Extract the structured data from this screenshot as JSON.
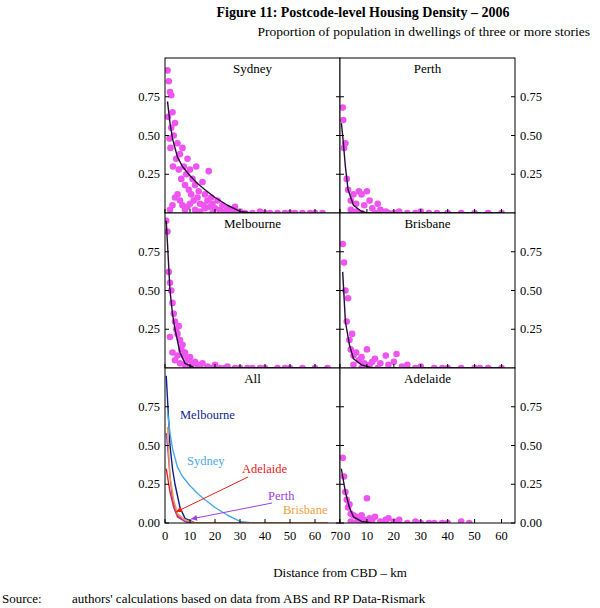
{
  "figure": {
    "title": "Figure 11: Postcode-level Housing Density – 2006",
    "subtitle": "Proportion of population in dwellings of three or more stories",
    "x_label": "Distance from CBD – km",
    "source_label": "Source:",
    "source": "authors' calculations based on data from ABS and RP Data-Rismark"
  },
  "chart_data": [
    {
      "type": "scatter",
      "title": "Sydney",
      "xlim": [
        0,
        70
      ],
      "xticks": [
        0,
        10,
        20,
        30,
        40,
        50,
        60,
        70
      ],
      "ylim": [
        0,
        1
      ],
      "yticks": [
        0.25,
        {
          "value": 0.5,
          "label": "0.50"
        },
        0.75
      ],
      "tick_labels": "y",
      "series": [
        {
          "type": "scatter",
          "color": "#ee55ee",
          "marker": "circle",
          "x": [
            1,
            1.5,
            2,
            2.5,
            1.2,
            2.5,
            3,
            1.8,
            2.2,
            3.5,
            4,
            4.5,
            3.2,
            5,
            5.5,
            6,
            6.5,
            7,
            7.5,
            8,
            8.5,
            9,
            9.5,
            10,
            10.5,
            11,
            11.5,
            12,
            12.5,
            13,
            13.5,
            14,
            15,
            15.5,
            16,
            17,
            17.5,
            18,
            18.5,
            19,
            20,
            21,
            22,
            23,
            24,
            25,
            26,
            27,
            28,
            30,
            32,
            35,
            38,
            40,
            45,
            50,
            55,
            60,
            2,
            3,
            4,
            5,
            6,
            7,
            8,
            9,
            10,
            12,
            14,
            16,
            19,
            22,
            25,
            28,
            42,
            48,
            52,
            58,
            63
          ],
          "values": [
            0.92,
            0.85,
            0.78,
            0.76,
            0.62,
            0.55,
            0.65,
            0.48,
            0.42,
            0.5,
            0.58,
            0.35,
            0.3,
            0.45,
            0.28,
            0.38,
            0.22,
            0.42,
            0.3,
            0.18,
            0.25,
            0.35,
            0.15,
            0.28,
            0.12,
            0.22,
            0.08,
            0.18,
            0.3,
            0.1,
            0.14,
            0.06,
            0.2,
            0.05,
            0.12,
            0.08,
            0.27,
            0.04,
            0.1,
            0.06,
            0.03,
            0.08,
            0.02,
            0.05,
            0.01,
            0.03,
            0.02,
            0.01,
            0.04,
            0.01,
            0,
            0,
            0.01,
            0,
            0,
            0,
            0,
            0,
            0.02,
            0.05,
            0.1,
            0.12,
            0.08,
            0.05,
            0.02,
            0.04,
            0.06,
            0.02,
            0.01,
            0.03,
            0,
            0,
            0,
            0,
            0,
            0,
            0,
            0,
            0
          ]
        },
        {
          "type": "line",
          "color": "#2a0a3a",
          "x": [
            1,
            2,
            3,
            5,
            7,
            10,
            13,
            16,
            20,
            25,
            30,
            35,
            40
          ],
          "values": [
            0.72,
            0.58,
            0.48,
            0.36,
            0.3,
            0.24,
            0.19,
            0.15,
            0.1,
            0.05,
            0.01,
            0,
            0
          ]
        }
      ]
    },
    {
      "type": "scatter",
      "title": "Perth",
      "xlim": [
        0,
        65
      ],
      "xticks": [
        0,
        10,
        20,
        30,
        40,
        50,
        60
      ],
      "ylim": [
        0,
        1
      ],
      "yticks": [
        0.25,
        {
          "value": 0.5,
          "label": "0.50"
        },
        0.75
      ],
      "tick_labels": "y",
      "series": [
        {
          "type": "scatter",
          "color": "#ee55ee",
          "marker": "circle",
          "x": [
            1,
            1.2,
            1.5,
            2,
            2.5,
            3,
            4,
            5,
            6,
            7,
            8,
            9,
            10,
            11,
            12,
            14,
            15,
            17,
            20,
            22,
            25,
            28,
            30,
            33,
            36,
            40,
            45,
            50,
            55,
            60,
            4,
            6,
            8,
            13,
            18
          ],
          "values": [
            0.68,
            0.6,
            0.42,
            0.45,
            0.22,
            0.15,
            0.08,
            0.12,
            0.06,
            0.14,
            0.12,
            0.05,
            0.14,
            0.08,
            0.03,
            0.06,
            0.02,
            0.01,
            0,
            0.01,
            0,
            0,
            0.01,
            0,
            0,
            0,
            0,
            0,
            0,
            0,
            0.02,
            0.01,
            0,
            0,
            0
          ]
        },
        {
          "type": "line",
          "color": "#2a0a3a",
          "x": [
            0.5,
            1,
            2,
            3,
            5,
            8,
            10,
            15,
            20,
            30,
            40,
            50,
            60
          ],
          "values": [
            0.58,
            0.5,
            0.3,
            0.15,
            0.05,
            0.01,
            0,
            0,
            0,
            0,
            0,
            0,
            0
          ]
        }
      ]
    },
    {
      "type": "scatter",
      "title": "Melbourne",
      "xlim": [
        0,
        70
      ],
      "xticks": [
        0,
        10,
        20,
        30,
        40,
        50,
        60,
        70
      ],
      "ylim": [
        0,
        1
      ],
      "yticks": [
        0.25,
        {
          "value": 0.5,
          "label": "0.50"
        },
        0.75
      ],
      "tick_labels": "y",
      "series": [
        {
          "type": "scatter",
          "color": "#ee55ee",
          "marker": "circle",
          "x": [
            0.5,
            1,
            1.5,
            2,
            2.5,
            3,
            3.5,
            4,
            4.5,
            5,
            5.5,
            6,
            6.5,
            7,
            7.5,
            8,
            9,
            10,
            11,
            12,
            13,
            15,
            17,
            20,
            22,
            25,
            28,
            30,
            35,
            40,
            45,
            50,
            55,
            60,
            65,
            3,
            4,
            5,
            6,
            8,
            10,
            14,
            18,
            24,
            33,
            38,
            48,
            2
          ],
          "values": [
            0.95,
            0.88,
            0.62,
            0.55,
            0.5,
            0.42,
            0.35,
            0.3,
            0.25,
            0.22,
            0.27,
            0.18,
            0.12,
            0.15,
            0.08,
            0.1,
            0.05,
            0.07,
            0.03,
            0.04,
            0.02,
            0.03,
            0.01,
            0.02,
            0,
            0.01,
            0,
            0,
            0,
            0,
            0,
            0,
            0,
            0,
            0,
            0.1,
            0.05,
            0.08,
            0.03,
            0.02,
            0,
            0,
            0,
            0,
            0,
            0,
            0,
            0.2
          ]
        },
        {
          "type": "line",
          "color": "#2a0a3a",
          "x": [
            0.5,
            1,
            2,
            3,
            4,
            6,
            8,
            12,
            20,
            30,
            40,
            50,
            60,
            65
          ],
          "values": [
            0.95,
            0.8,
            0.5,
            0.35,
            0.25,
            0.1,
            0.03,
            0,
            0,
            0,
            0,
            0,
            0,
            0
          ]
        }
      ]
    },
    {
      "type": "scatter",
      "title": "Brisbane",
      "xlim": [
        0,
        65
      ],
      "xticks": [
        0,
        10,
        20,
        30,
        40,
        50,
        60
      ],
      "ylim": [
        0,
        1
      ],
      "yticks": [
        0.25,
        {
          "value": 0.5,
          "label": "0.50"
        },
        0.75
      ],
      "tick_labels": "y",
      "series": [
        {
          "type": "scatter",
          "color": "#ee55ee",
          "marker": "circle",
          "x": [
            1,
            1.5,
            2,
            2.5,
            3,
            3.5,
            4,
            4.5,
            5,
            6,
            7,
            8,
            9,
            10,
            11,
            12,
            13,
            15,
            17,
            18,
            20,
            21,
            23,
            25,
            28,
            30,
            35,
            40,
            45,
            50,
            55,
            60,
            5,
            8,
            14,
            38,
            52
          ],
          "values": [
            0.8,
            0.68,
            0.5,
            0.3,
            0.45,
            0.18,
            0.12,
            0.22,
            0.08,
            0.1,
            0.05,
            0.07,
            0.03,
            0.12,
            0.02,
            0.04,
            0.06,
            0.03,
            0.08,
            0.02,
            0.04,
            0.09,
            0.01,
            0.02,
            0,
            0.01,
            0,
            0,
            0,
            0,
            0,
            0,
            0.02,
            0,
            0,
            0,
            0
          ]
        },
        {
          "type": "line",
          "color": "#2a0a3a",
          "x": [
            1,
            2,
            3.5,
            5,
            8,
            12,
            20,
            30,
            40,
            50,
            60
          ],
          "values": [
            0.62,
            0.3,
            0.15,
            0.06,
            0.02,
            0,
            0,
            0,
            0,
            0,
            0
          ]
        }
      ]
    },
    {
      "type": "line",
      "title": "All",
      "xlim": [
        0,
        70
      ],
      "xticks": [
        0,
        10,
        20,
        30,
        40,
        50,
        60,
        70
      ],
      "ylim": [
        0,
        1
      ],
      "yticks": [
        {
          "value": 0,
          "label": "0.00"
        },
        0.25,
        {
          "value": 0.5,
          "label": "0.50"
        },
        0.75
      ],
      "series": [
        {
          "name": "Melbourne",
          "color": "#0b1f8f",
          "x": [
            0.5,
            1,
            2,
            3,
            4,
            6,
            8,
            12,
            20,
            30,
            40,
            50,
            60,
            65
          ],
          "values": [
            0.95,
            0.8,
            0.5,
            0.35,
            0.25,
            0.1,
            0.03,
            0,
            0,
            0,
            0,
            0,
            0,
            0
          ]
        },
        {
          "name": "Sydney",
          "color": "#4aa8e8",
          "x": [
            1,
            2,
            3,
            5,
            7,
            10,
            13,
            16,
            20,
            25,
            30,
            35,
            40,
            50,
            60,
            65
          ],
          "values": [
            0.72,
            0.58,
            0.48,
            0.36,
            0.3,
            0.24,
            0.19,
            0.15,
            0.1,
            0.05,
            0.01,
            0,
            0,
            0,
            0,
            0
          ]
        },
        {
          "name": "Adelaide",
          "color": "#e8201a",
          "x": [
            0.5,
            1,
            2,
            3.5,
            5,
            8,
            12,
            20,
            30,
            40,
            50
          ],
          "values": [
            0.35,
            0.3,
            0.2,
            0.1,
            0.04,
            0.01,
            0,
            0,
            0,
            0,
            0
          ]
        },
        {
          "name": "Perth",
          "color": "#9b40e0",
          "x": [
            0.5,
            1,
            2,
            3,
            5,
            8,
            10,
            15,
            20,
            30,
            40,
            50,
            60,
            65
          ],
          "values": [
            0.58,
            0.5,
            0.3,
            0.15,
            0.05,
            0.01,
            0,
            0,
            0,
            0,
            0,
            0,
            0,
            0
          ]
        },
        {
          "name": "Brisbane",
          "color": "#f0a040",
          "x": [
            1,
            2,
            3.5,
            5,
            8,
            12,
            20,
            30,
            40,
            50,
            60,
            65
          ],
          "values": [
            0.62,
            0.3,
            0.15,
            0.06,
            0.02,
            0,
            0,
            0,
            0,
            0,
            0,
            0
          ]
        }
      ]
    },
    {
      "type": "scatter",
      "title": "Adelaide",
      "xlim": [
        0,
        65
      ],
      "xticks": [
        0,
        10,
        20,
        30,
        40,
        50,
        60
      ],
      "ylim": [
        0,
        1
      ],
      "yticks": [
        {
          "value": 0,
          "label": "0.00"
        },
        0.25,
        {
          "value": 0.5,
          "label": "0.50"
        },
        0.75
      ],
      "series": [
        {
          "type": "scatter",
          "color": "#ee55ee",
          "marker": "circle",
          "x": [
            1,
            1.5,
            2,
            2.5,
            3,
            3.5,
            4,
            5,
            6,
            7,
            8,
            9,
            10,
            11,
            12,
            13,
            15,
            17,
            18,
            20,
            22,
            25,
            28,
            30,
            33,
            35,
            38,
            40,
            45,
            48,
            4,
            6,
            8,
            10
          ],
          "values": [
            0.42,
            0.3,
            0.2,
            0.15,
            0.1,
            0.12,
            0.06,
            0.05,
            0.04,
            0.03,
            0.05,
            0.02,
            0.16,
            0.03,
            0.02,
            0.04,
            0.01,
            0.02,
            0.03,
            0.01,
            0.02,
            0,
            0.01,
            0,
            0,
            0,
            0,
            0,
            0.01,
            0,
            0.01,
            0,
            0.01,
            0
          ]
        },
        {
          "type": "line",
          "color": "#2a0a3a",
          "x": [
            0.5,
            1,
            2,
            3.5,
            5,
            8,
            12,
            20,
            30,
            40
          ],
          "values": [
            0.35,
            0.3,
            0.2,
            0.1,
            0.04,
            0.01,
            0,
            0,
            0,
            0
          ]
        }
      ]
    }
  ]
}
